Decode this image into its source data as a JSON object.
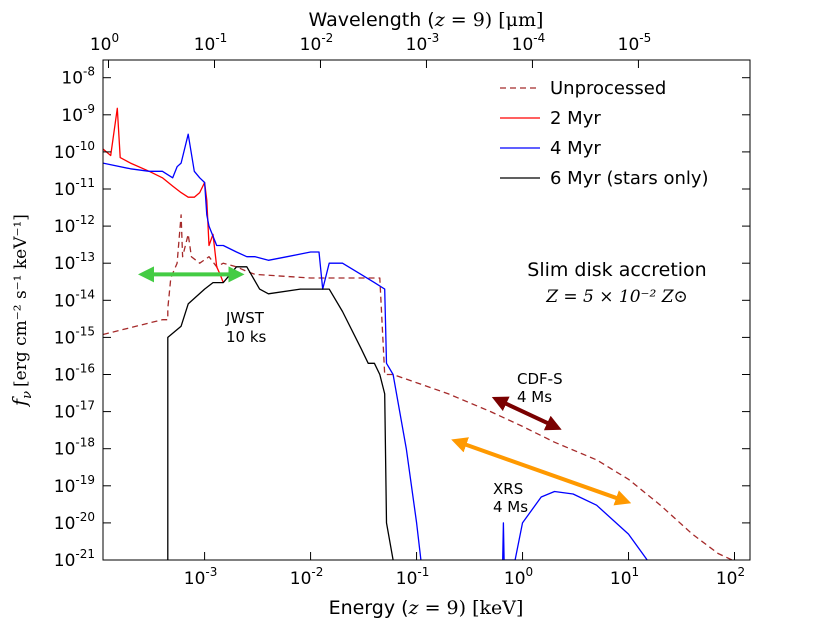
{
  "chart_data": {
    "type": "line",
    "title": "",
    "xlabel": {
      "prefix": "Energy (",
      "math": "z",
      "eq": " = 9) ",
      "unit": "[keV]"
    },
    "ylabel": {
      "sym": "f",
      "sub": "ν",
      "unit": "[erg cm⁻² s⁻¹ keV⁻¹]"
    },
    "top_xlabel": {
      "prefix": "Wavelength (",
      "math": "z",
      "eq": " = 9) ",
      "unit": "[μm]"
    },
    "xscale": "log",
    "yscale": "log",
    "xlim": [
      0.00011,
      140
    ],
    "ylim": [
      1e-21,
      3e-08
    ],
    "x_ticks": [
      {
        "value": 0.001,
        "base": "10",
        "exp": "-3"
      },
      {
        "value": 0.01,
        "base": "10",
        "exp": "-2"
      },
      {
        "value": 0.1,
        "base": "10",
        "exp": "-1"
      },
      {
        "value": 1,
        "base": "10",
        "exp": "0"
      },
      {
        "value": 10,
        "base": "10",
        "exp": "1"
      },
      {
        "value": 100,
        "base": "10",
        "exp": "2"
      }
    ],
    "y_ticks": [
      {
        "value": 1e-08,
        "base": "10",
        "exp": "-8"
      },
      {
        "value": 1e-09,
        "base": "10",
        "exp": "-9"
      },
      {
        "value": 1e-10,
        "base": "10",
        "exp": "-10"
      },
      {
        "value": 1e-11,
        "base": "10",
        "exp": "-11"
      },
      {
        "value": 1e-12,
        "base": "10",
        "exp": "-12"
      },
      {
        "value": 1e-13,
        "base": "10",
        "exp": "-13"
      },
      {
        "value": 1e-14,
        "base": "10",
        "exp": "-14"
      },
      {
        "value": 1e-15,
        "base": "10",
        "exp": "-15"
      },
      {
        "value": 1e-16,
        "base": "10",
        "exp": "-16"
      },
      {
        "value": 1e-17,
        "base": "10",
        "exp": "-17"
      },
      {
        "value": 1e-18,
        "base": "10",
        "exp": "-18"
      },
      {
        "value": 1e-19,
        "base": "10",
        "exp": "-19"
      },
      {
        "value": 1e-20,
        "base": "10",
        "exp": "-20"
      },
      {
        "value": 1e-21,
        "base": "10",
        "exp": "-21"
      }
    ],
    "top_ticks": [
      {
        "energy": 0.000124,
        "base": "10",
        "exp": "0",
        "label": "10^0"
      },
      {
        "energy": 0.00124,
        "base": "10",
        "exp": "-1"
      },
      {
        "energy": 0.0124,
        "base": "10",
        "exp": "-2"
      },
      {
        "energy": 0.124,
        "base": "10",
        "exp": "-3"
      },
      {
        "energy": 1.24,
        "base": "10",
        "exp": "-4"
      },
      {
        "energy": 12.4,
        "base": "10",
        "exp": "-5"
      }
    ],
    "series": [
      {
        "name": "Unprocessed",
        "color": "#a52a2a",
        "style": "dashed",
        "points": [
          [
            0.00011,
            1.2e-15
          ],
          [
            0.0004,
            3e-15
          ],
          [
            0.00045,
            3e-15
          ],
          [
            0.00045,
            6e-15
          ],
          [
            0.00048,
            4e-14
          ],
          [
            0.00055,
            1e-13
          ],
          [
            0.0006,
            2e-12
          ],
          [
            0.00062,
            1.5e-13
          ],
          [
            0.0007,
            6e-13
          ],
          [
            0.00075,
            1.5e-13
          ],
          [
            0.0009,
            1e-13
          ],
          [
            0.0011,
            1.5e-13
          ],
          [
            0.0013,
            8e-14
          ],
          [
            0.0015,
            1e-13
          ],
          [
            0.002,
            8e-14
          ],
          [
            0.0025,
            6e-14
          ],
          [
            0.003,
            5e-14
          ],
          [
            0.01,
            4e-14
          ],
          [
            0.03,
            4e-14
          ],
          [
            0.045,
            4e-14
          ],
          [
            0.05,
            1e-16
          ],
          [
            0.06,
            1e-16
          ],
          [
            0.1,
            6e-17
          ],
          [
            0.2,
            3e-17
          ],
          [
            0.5,
            1e-17
          ],
          [
            1,
            4e-18
          ],
          [
            2,
            1.5e-18
          ],
          [
            5,
            5e-19
          ],
          [
            10,
            1.5e-19
          ],
          [
            20,
            3e-20
          ],
          [
            40,
            5e-21
          ],
          [
            70,
            1.5e-21
          ],
          [
            95,
            1e-21
          ]
        ]
      },
      {
        "name": "2 Myr",
        "color": "#ff0000",
        "style": "solid",
        "points": [
          [
            0.00011,
            1.2e-10
          ],
          [
            0.00013,
            8e-11
          ],
          [
            0.00015,
            1.5e-09
          ],
          [
            0.00016,
            7e-11
          ],
          [
            0.0002,
            5e-11
          ],
          [
            0.0003,
            3e-11
          ],
          [
            0.0004,
            2e-11
          ],
          [
            0.0005,
            1.2e-11
          ],
          [
            0.0006,
            8e-12
          ],
          [
            0.0007,
            6e-12
          ],
          [
            0.0008,
            6e-12
          ],
          [
            0.0009,
            8e-12
          ],
          [
            0.001,
            1.5e-11
          ],
          [
            0.00105,
            5e-12
          ],
          [
            0.0011,
            3e-13
          ],
          [
            0.0012,
            6e-13
          ],
          [
            0.0013,
            8e-14
          ],
          [
            0.0014,
            5e-14
          ],
          [
            0.0015,
            3e-14
          ]
        ]
      },
      {
        "name": "4 Myr",
        "color": "#0000ff",
        "style": "solid",
        "points": [
          [
            0.00011,
            5e-11
          ],
          [
            0.0002,
            3.5e-11
          ],
          [
            0.0003,
            3e-11
          ],
          [
            0.0004,
            3e-11
          ],
          [
            0.0005,
            2e-11
          ],
          [
            0.00055,
            4e-11
          ],
          [
            0.0006,
            5e-11
          ],
          [
            0.0007,
            3e-10
          ],
          [
            0.0008,
            3e-11
          ],
          [
            0.0009,
            2e-11
          ],
          [
            0.001,
            1.5e-11
          ],
          [
            0.00105,
            2e-12
          ],
          [
            0.0011,
            1e-12
          ],
          [
            0.0013,
            3e-13
          ],
          [
            0.0015,
            3e-13
          ],
          [
            0.002,
            2e-13
          ],
          [
            0.0025,
            1.5e-13
          ],
          [
            0.003,
            1.5e-13
          ],
          [
            0.004,
            1.2e-13
          ],
          [
            0.006,
            1.5e-13
          ],
          [
            0.01,
            2e-13
          ],
          [
            0.012,
            2e-13
          ],
          [
            0.013,
            2e-14
          ],
          [
            0.015,
            1e-13
          ],
          [
            0.02,
            1e-13
          ],
          [
            0.03,
            5e-14
          ],
          [
            0.04,
            3e-14
          ],
          [
            0.05,
            2e-14
          ],
          [
            0.052,
            2e-16
          ],
          [
            0.06,
            1e-16
          ],
          [
            0.08,
            1e-18
          ],
          [
            0.1,
            1e-20
          ],
          [
            0.11,
            1e-21
          ]
        ]
      },
      {
        "name": "4 Myr (hard tail)",
        "color": "#0000ff",
        "style": "solid",
        "legend": false,
        "points": [
          [
            0.65,
            1e-21
          ],
          [
            0.66,
            1e-20
          ],
          [
            0.67,
            1e-21
          ],
          [
            0.85,
            1e-21
          ],
          [
            1,
            1e-20
          ],
          [
            1.5,
            5e-20
          ],
          [
            2,
            7e-20
          ],
          [
            3,
            6e-20
          ],
          [
            5,
            3e-20
          ],
          [
            10,
            5e-21
          ],
          [
            15,
            1e-21
          ]
        ]
      },
      {
        "name": "6 Myr (stars only)",
        "color": "#000000",
        "style": "solid",
        "points": [
          [
            0.00045,
            1e-21
          ],
          [
            0.00045,
            1e-15
          ],
          [
            0.0006,
            2e-15
          ],
          [
            0.0007,
            8e-15
          ],
          [
            0.001,
            2e-14
          ],
          [
            0.0012,
            3e-14
          ],
          [
            0.0015,
            3e-14
          ],
          [
            0.002,
            8e-14
          ],
          [
            0.0025,
            8e-14
          ],
          [
            0.0033,
            2e-14
          ],
          [
            0.004,
            1.5e-14
          ],
          [
            0.008,
            2e-14
          ],
          [
            0.01,
            2e-14
          ],
          [
            0.013,
            2e-14
          ],
          [
            0.015,
            2e-14
          ],
          [
            0.02,
            5e-15
          ],
          [
            0.03,
            5e-16
          ],
          [
            0.035,
            2e-16
          ],
          [
            0.04,
            2e-16
          ],
          [
            0.045,
            1e-16
          ],
          [
            0.05,
            3e-17
          ],
          [
            0.052,
            1e-20
          ],
          [
            0.06,
            1e-21
          ]
        ]
      }
    ],
    "legend": {
      "position": "top-right",
      "entries": [
        {
          "label": "Unprocessed",
          "color": "#a52a2a",
          "style": "dashed"
        },
        {
          "label": "2 Myr",
          "color": "#ff0000",
          "style": "solid"
        },
        {
          "label": "4 Myr",
          "color": "#0000ff",
          "style": "solid"
        },
        {
          "label": "6 Myr (stars only)",
          "color": "#000000",
          "style": "solid"
        }
      ]
    },
    "sensitivity_bands": [
      {
        "name": "JWST",
        "label_line1": "JWST",
        "label_line2": "10 ks",
        "color": "#44cc44",
        "x": [
          0.00028,
          0.002
        ],
        "y": [
          5e-14,
          5e-14
        ]
      },
      {
        "name": "CDF-S",
        "label_line1": "CDF-S",
        "label_line2": "4 Ms",
        "color": "#7a0000",
        "x": [
          0.6,
          2
        ],
        "y": [
          2e-17,
          4e-18
        ]
      },
      {
        "name": "XRS",
        "label_line1": "XRS",
        "label_line2": "4 Ms",
        "color": "#ff9900",
        "x": [
          0.25,
          9
        ],
        "y": [
          1.5e-18,
          4e-20
        ]
      }
    ],
    "annotations": {
      "title_line1": "Slim disk accretion",
      "title_line2": "Z = 5 × 10⁻² Z⊙"
    }
  }
}
